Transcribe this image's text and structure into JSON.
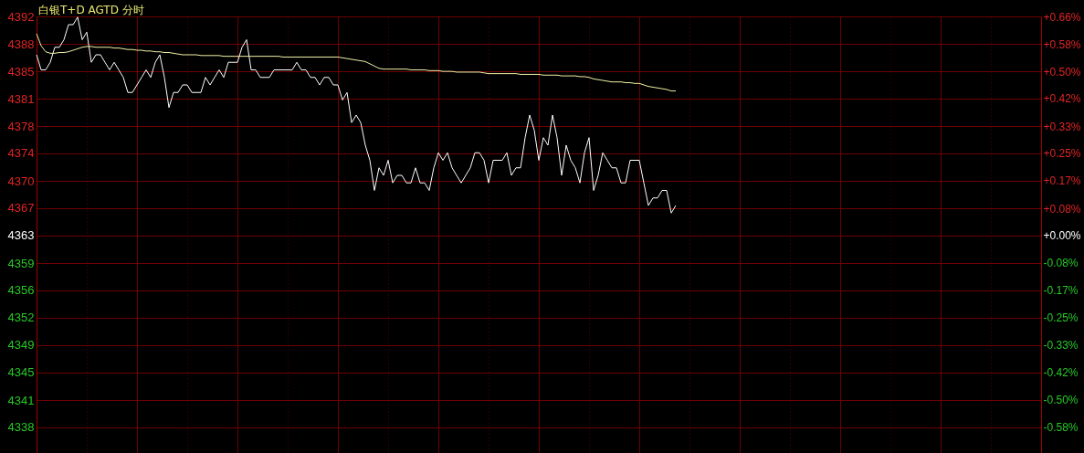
{
  "chart_data": {
    "type": "line",
    "title": "白银T+D AGTD 分时",
    "categories": [
      null,
      null,
      null,
      null,
      null,
      null,
      null,
      null,
      null,
      null,
      null,
      null,
      null,
      null,
      null,
      null,
      null,
      null,
      null,
      null,
      null,
      null,
      null,
      null,
      null,
      null,
      null,
      null,
      null,
      null,
      null,
      null,
      null,
      null,
      null,
      null,
      null,
      null,
      null,
      null,
      null,
      null,
      null,
      null,
      null,
      null,
      null,
      null,
      null,
      null,
      null,
      null,
      null,
      null,
      null,
      null,
      null,
      null,
      null,
      null,
      null,
      null,
      null,
      null,
      null,
      null,
      null,
      null,
      null,
      null,
      null,
      null,
      null,
      null,
      null,
      null,
      null,
      null,
      null,
      null,
      null,
      null,
      null,
      null,
      null,
      null,
      null,
      null,
      null,
      null,
      null,
      null,
      null,
      null,
      null,
      null,
      null,
      null,
      null,
      null,
      null,
      null,
      null,
      null,
      null,
      null,
      null,
      null,
      null,
      null,
      null,
      null,
      null,
      null,
      null,
      null,
      null,
      null,
      null,
      null,
      null,
      null,
      null,
      null,
      null,
      null,
      null,
      null,
      null,
      null,
      null,
      null,
      null,
      null,
      null,
      null,
      null,
      null,
      null,
      null,
      null,
      null,
      null,
      null,
      null,
      null,
      null,
      null,
      null,
      null,
      null,
      null,
      null,
      null,
      null,
      null,
      null,
      null,
      null,
      null,
      null,
      null,
      null,
      null,
      null,
      null,
      null,
      null,
      null,
      null,
      null,
      null,
      null,
      null,
      null,
      null,
      null,
      null,
      null,
      null,
      null,
      null,
      null,
      null,
      null,
      null,
      null,
      null,
      null,
      null,
      null,
      null,
      null,
      null,
      null,
      null,
      null,
      null,
      null,
      null,
      null,
      null,
      null,
      null,
      null,
      null,
      null,
      null,
      null,
      null,
      null,
      null,
      null,
      null,
      null,
      null,
      null,
      null,
      null,
      null,
      null
    ],
    "series": [
      {
        "color": "#ffffff",
        "values": [
          4387,
          4385,
          4385,
          4386,
          4388,
          4388,
          4389,
          4391,
          4391,
          4392,
          4389,
          4390,
          4386,
          4387,
          4387,
          4386,
          4385,
          4386,
          4385,
          4384,
          4382,
          4382,
          4383,
          4384,
          4385,
          4384,
          4386,
          4387,
          4384,
          4380,
          4382,
          4382,
          4383,
          4383,
          4382,
          4382,
          4382,
          4384,
          4383,
          4384,
          4385,
          4384,
          4386,
          4386,
          4386,
          4388,
          4389,
          4385,
          4385,
          4384,
          4384,
          4384,
          4385,
          4385,
          4385,
          4385,
          4385,
          4386,
          4385,
          4385,
          4384,
          4384,
          4383,
          4384,
          4384,
          4383,
          4383,
          4381,
          4382,
          4378,
          4379,
          4378,
          4375,
          4373,
          4369,
          4372,
          4371,
          4373,
          4370,
          4371,
          4371,
          4370,
          4370,
          4372,
          4370,
          4370,
          4369,
          4372,
          4374,
          4373,
          4374,
          4372,
          4371,
          4370,
          4371,
          4372,
          4374,
          4374,
          4373,
          4370,
          4373,
          4373,
          4373,
          4374,
          4371,
          4372,
          4372,
          4376,
          4379,
          4377,
          4373,
          4376,
          4375,
          4379,
          4376,
          4371,
          4375,
          4373,
          4372,
          4370,
          4374,
          4376,
          4369,
          4371,
          4374,
          4373,
          4372,
          4372,
          4370,
          4370,
          4373,
          4373,
          4373,
          4370,
          4367,
          4368,
          4368,
          4369,
          4369,
          4366,
          4367,
          null,
          null,
          null,
          null,
          null,
          null,
          null,
          null,
          null,
          null,
          null,
          null,
          null,
          null,
          null,
          null,
          null,
          null,
          null,
          null,
          null,
          null,
          null,
          null,
          null,
          null,
          null,
          null,
          null,
          null,
          null,
          null,
          null,
          null,
          null,
          null,
          null,
          null,
          null,
          null,
          null,
          null,
          null,
          null,
          null,
          null,
          null,
          null,
          null,
          null,
          null,
          null,
          null,
          null,
          null,
          null,
          null,
          null,
          null,
          null,
          null,
          null,
          null,
          null,
          null,
          null,
          null,
          null,
          null,
          null,
          null,
          null,
          null,
          null,
          null,
          null,
          null,
          null,
          null,
          null
        ]
      },
      {
        "color": "#f0f0a8",
        "values": [
          4389.8,
          4388.2,
          4387.4,
          4387.2,
          4387.2,
          4387.3,
          4387.3,
          4387.4,
          4387.6,
          4387.8,
          4388.0,
          4388.1,
          4388.1,
          4388.0,
          4388.0,
          4388.0,
          4388.0,
          4387.9,
          4387.9,
          4387.8,
          4387.7,
          4387.7,
          4387.6,
          4387.6,
          4387.5,
          4387.5,
          4387.4,
          4387.4,
          4387.3,
          4387.3,
          4387.2,
          4387.1,
          4387.0,
          4387.0,
          4387.0,
          4387.0,
          4386.9,
          4386.9,
          4386.9,
          4386.9,
          4386.9,
          4386.8,
          4386.8,
          4386.8,
          4386.8,
          4386.8,
          4386.8,
          4386.8,
          4386.8,
          4386.8,
          4386.8,
          4386.8,
          4386.8,
          4386.8,
          4386.7,
          4386.7,
          4386.7,
          4386.7,
          4386.7,
          4386.7,
          4386.7,
          4386.7,
          4386.7,
          4386.7,
          4386.7,
          4386.7,
          4386.7,
          4386.6,
          4386.5,
          4386.4,
          4386.3,
          4386.2,
          4386.1,
          4385.8,
          4385.5,
          4385.2,
          4385.1,
          4385.1,
          4385.1,
          4385.1,
          4385.1,
          4385.1,
          4385.0,
          4385.0,
          4385.0,
          4385.0,
          4384.9,
          4384.9,
          4384.9,
          4384.8,
          4384.8,
          4384.8,
          4384.7,
          4384.7,
          4384.7,
          4384.7,
          4384.7,
          4384.7,
          4384.6,
          4384.5,
          4384.5,
          4384.5,
          4384.5,
          4384.5,
          4384.5,
          4384.5,
          4384.4,
          4384.4,
          4384.4,
          4384.4,
          4384.4,
          4384.3,
          4384.3,
          4384.3,
          4384.3,
          4384.2,
          4384.2,
          4384.2,
          4384.2,
          4384.1,
          4384.1,
          4384.0,
          4383.8,
          4383.7,
          4383.6,
          4383.5,
          4383.4,
          4383.4,
          4383.4,
          4383.3,
          4383.3,
          4383.2,
          4383.2,
          4383.0,
          4382.8,
          4382.7,
          4382.6,
          4382.5,
          4382.4,
          4382.2,
          4382.2,
          null,
          null,
          null,
          null,
          null,
          null,
          null,
          null,
          null,
          null,
          null,
          null,
          null,
          null,
          null,
          null,
          null,
          null,
          null,
          null,
          null,
          null,
          null,
          null,
          null,
          null,
          null,
          null,
          null,
          null,
          null,
          null,
          null,
          null,
          null,
          null,
          null,
          null,
          null,
          null,
          null,
          null,
          null,
          null,
          null,
          null,
          null,
          null,
          null,
          null,
          null,
          null,
          null,
          null,
          null,
          null,
          null,
          null,
          null,
          null,
          null,
          null,
          null,
          null,
          null,
          null,
          null,
          null,
          null,
          null,
          null,
          null,
          null,
          null,
          null,
          null,
          null,
          null,
          null,
          null
        ]
      }
    ],
    "ylim": [
      4334.15,
      4392.09
    ],
    "yticks": [
      {
        "value": 4392.09,
        "label": "4392"
      },
      {
        "value": 4388.45,
        "label": "4388"
      },
      {
        "value": 4384.81,
        "label": "4385"
      },
      {
        "value": 4381.18,
        "label": "4381"
      },
      {
        "value": 4377.54,
        "label": "4378"
      },
      {
        "value": 4373.91,
        "label": "4374"
      },
      {
        "value": 4370.27,
        "label": "4370"
      },
      {
        "value": 4366.64,
        "label": "4367"
      },
      4363,
      {
        "value": 4359.36,
        "label": "4359"
      },
      {
        "value": 4355.73,
        "label": "4356"
      },
      {
        "value": 4352.09,
        "label": "4352"
      },
      {
        "value": 4348.51,
        "label": "4349"
      },
      {
        "value": 4344.82,
        "label": "4345"
      },
      {
        "value": 4341.18,
        "label": "4341"
      },
      {
        "value": 4337.55,
        "label": "4338"
      }
    ],
    "y2lim": [
      -0.6612,
      0.6667
    ],
    "y2ticks": [
      {
        "value": 0.6649,
        "label": "+0.66%"
      },
      {
        "value": 0.5833,
        "label": "+0.58%"
      },
      {
        "value": 0.5,
        "label": "+0.50%"
      },
      {
        "value": 0.4167,
        "label": "+0.42%"
      },
      {
        "value": 0.3333,
        "label": "+0.33%"
      },
      {
        "value": 0.25,
        "label": "+0.25%"
      },
      {
        "value": 0.1667,
        "label": "+0.17%"
      },
      {
        "value": 0.0833,
        "label": "+0.08%"
      },
      {
        "value": 0,
        "label": "+0.00%"
      },
      {
        "value": -0.0833,
        "label": "-0.08%"
      },
      {
        "value": -0.1667,
        "label": "-0.17%"
      },
      {
        "value": -0.25,
        "label": "-0.25%"
      },
      {
        "value": -0.3333,
        "label": "-0.33%"
      },
      {
        "value": -0.4167,
        "label": "-0.42%"
      },
      {
        "value": -0.5,
        "label": "-0.50%"
      },
      {
        "value": -0.5833,
        "label": "-0.58%"
      }
    ],
    "grid": true
  }
}
